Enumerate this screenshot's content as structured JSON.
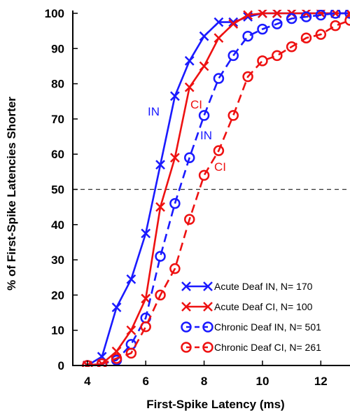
{
  "chart_data": {
    "type": "line",
    "xlabel": "First-Spike Latency (ms)",
    "ylabel": "% of First-Spike Latencies Shorter",
    "xlim": [
      3.5,
      13
    ],
    "ylim": [
      0,
      100
    ],
    "xticks": [
      4,
      6,
      8,
      10,
      12
    ],
    "yticks": [
      0,
      10,
      20,
      30,
      40,
      50,
      60,
      70,
      80,
      90,
      100
    ],
    "reference_line": {
      "y": 50,
      "style": "dashed"
    },
    "legend_position": "bottom-right",
    "series": [
      {
        "name": "Acute Deaf IN, N= 170",
        "color": "#1a1aff",
        "dashed": false,
        "marker": "x",
        "x": [
          4.0,
          4.5,
          5.0,
          5.5,
          6.0,
          6.5,
          7.0,
          7.5,
          8.0,
          8.5,
          9.0,
          9.5,
          10.0,
          10.5,
          11.0,
          11.5,
          12.0,
          12.5,
          13.0
        ],
        "y": [
          0.0,
          2.5,
          16.5,
          24.5,
          37.5,
          57.0,
          76.5,
          86.5,
          93.5,
          97.5,
          97.5,
          99.0,
          100,
          100,
          100,
          100,
          100,
          100,
          100
        ],
        "annotation": "IN"
      },
      {
        "name": "Acute Deaf CI, N= 100",
        "color": "#ee1111",
        "dashed": false,
        "marker": "x",
        "x": [
          4.0,
          4.5,
          5.0,
          5.5,
          6.0,
          6.5,
          7.0,
          7.5,
          8.0,
          8.5,
          9.0,
          9.5,
          10.0,
          10.5,
          11.0,
          11.5,
          12.0,
          12.5,
          13.0
        ],
        "y": [
          0.0,
          0.5,
          4.0,
          10.0,
          19.0,
          45.0,
          59.0,
          79.0,
          85.0,
          93.0,
          97.0,
          99.5,
          100,
          100,
          100,
          100,
          100,
          100,
          100
        ],
        "annotation": "CI"
      },
      {
        "name": "Chronic Deaf IN, N= 501",
        "color": "#1a1aff",
        "dashed": true,
        "marker": "o",
        "x": [
          4.0,
          4.5,
          5.0,
          5.5,
          6.0,
          6.5,
          7.0,
          7.5,
          8.0,
          8.5,
          9.0,
          9.5,
          10.0,
          10.5,
          11.0,
          11.5,
          12.0,
          12.5,
          13.0
        ],
        "y": [
          0.0,
          0.5,
          1.5,
          6.0,
          13.5,
          31.0,
          46.0,
          59.0,
          71.0,
          81.5,
          88.0,
          93.5,
          95.5,
          97.0,
          98.5,
          99.0,
          99.5,
          100,
          100
        ],
        "annotation": "IN"
      },
      {
        "name": "Chronic Deaf CI, N= 261",
        "color": "#ee1111",
        "dashed": true,
        "marker": "o",
        "x": [
          4.0,
          4.5,
          5.0,
          5.5,
          6.0,
          6.5,
          7.0,
          7.5,
          8.0,
          8.5,
          9.0,
          9.5,
          10.0,
          10.5,
          11.0,
          11.5,
          12.0,
          12.5,
          13.0
        ],
        "y": [
          0.0,
          0.5,
          2.0,
          3.5,
          11.0,
          20.0,
          27.5,
          41.5,
          54.0,
          61.0,
          71.0,
          82.0,
          86.5,
          88.0,
          90.5,
          93.0,
          94.0,
          96.5,
          98.0
        ],
        "annotation": "CI"
      }
    ]
  }
}
